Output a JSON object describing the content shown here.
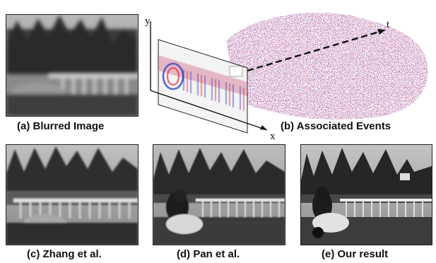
{
  "figure": {
    "captions": {
      "a": "(a) Blurred Image",
      "b": "(b) Associated Events",
      "c": "(c) Zhang et al.",
      "d": "(d) Pan et al.",
      "e": "(e) Our result"
    },
    "axes": {
      "x": "x",
      "y": "y",
      "t": "t"
    },
    "colors": {
      "positive_events": "#e0203a",
      "negative_events": "#2a3fc0",
      "frame_border": "#222222"
    }
  }
}
